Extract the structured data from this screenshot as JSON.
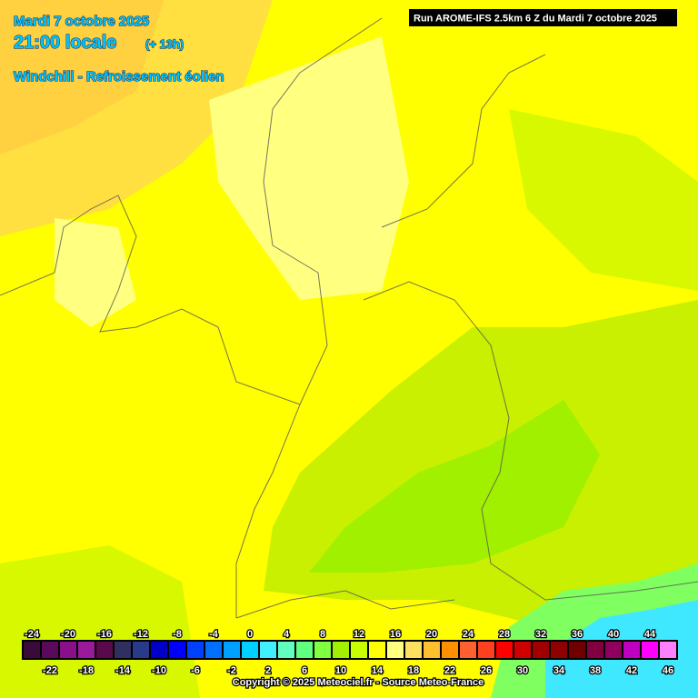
{
  "header": {
    "date": "Mardi 7 octobre 2025",
    "time": "21:00 locale",
    "lead": "(+ 13h)",
    "parameter": "Windchill - Refroissement éolien",
    "run": "Run AROME-IFS 2.5km 6 Z du Mardi 7 octobre 2025"
  },
  "legend": {
    "values": [
      -24,
      -22,
      -20,
      -18,
      -16,
      -14,
      -12,
      -10,
      -8,
      -6,
      -4,
      -2,
      0,
      2,
      4,
      6,
      8,
      10,
      12,
      14,
      16,
      18,
      20,
      22,
      24,
      26,
      28,
      30,
      32,
      34,
      36,
      38,
      40,
      42,
      44,
      46
    ],
    "colors": [
      "#3a0a3a",
      "#5a0a5a",
      "#8a108a",
      "#9a1a9a",
      "#5a0a4a",
      "#303060",
      "#2a3a8a",
      "#0000c8",
      "#0000ff",
      "#0040ff",
      "#0070ff",
      "#00a0ff",
      "#00d0ff",
      "#40f0ff",
      "#60ffc0",
      "#60ff80",
      "#80ff40",
      "#a0f000",
      "#c8ff00",
      "#ffff00",
      "#ffff80",
      "#ffe060",
      "#ffc030",
      "#ff9000",
      "#ff6030",
      "#ff4020",
      "#ff0000",
      "#d00000",
      "#a00000",
      "#900000",
      "#700000",
      "#800040",
      "#900060",
      "#c000c0",
      "#ff00ff",
      "#ff80ff"
    ]
  },
  "footer": {
    "copyright": "Copyright © 2025 Meteociel.fr - Source Meteo-France"
  }
}
